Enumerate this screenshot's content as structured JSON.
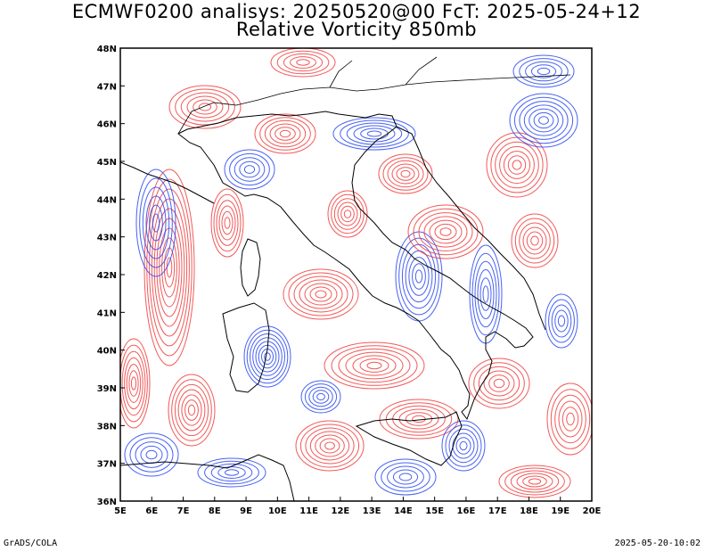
{
  "header": {
    "line1": "ECMWF0200 analisys: 20250520@00 FcT: 2025-05-24+12",
    "line2": "Relative Vorticity 850mb"
  },
  "map": {
    "projection": "lat-lon",
    "lon_range": [
      5,
      20
    ],
    "lat_range": [
      36,
      48
    ],
    "lon_labels": [
      "5E",
      "6E",
      "7E",
      "8E",
      "9E",
      "10E",
      "11E",
      "12E",
      "13E",
      "14E",
      "15E",
      "16E",
      "17E",
      "18E",
      "19E",
      "20E"
    ],
    "lat_labels": [
      "36N",
      "37N",
      "38N",
      "39N",
      "40N",
      "41N",
      "42N",
      "43N",
      "44N",
      "45N",
      "46N",
      "47N",
      "48N"
    ],
    "colors": {
      "positive_vorticity": "#f03c3c",
      "negative_vorticity": "#2846f0",
      "coastline": "#000000"
    }
  },
  "footer": {
    "left": "GrADS/COLA",
    "right": "2025-05-20-10:02"
  }
}
